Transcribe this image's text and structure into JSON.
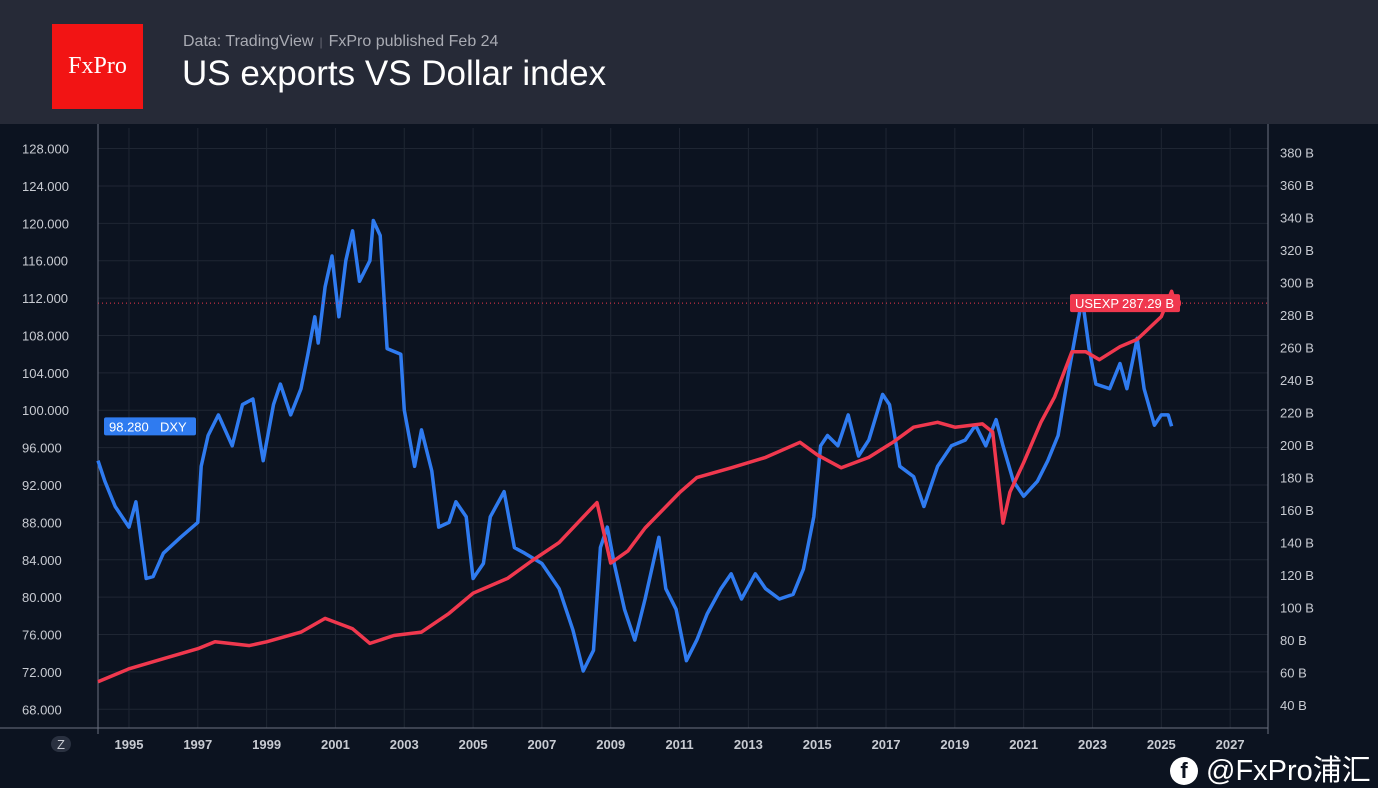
{
  "header": {
    "logo": "FxPro",
    "source": "Data: TradingView",
    "published": "FxPro published Feb 24",
    "title": "US exports VS Dollar index"
  },
  "watermark": "@FxPro浦汇",
  "colors": {
    "dxy": "#2f7bf0",
    "usexp": "#f0384e",
    "grid": "#1f2633"
  },
  "chart_data": {
    "type": "line",
    "title": "US exports VS Dollar index",
    "x_ticks": [
      "1995",
      "1997",
      "1999",
      "2001",
      "2003",
      "2005",
      "2007",
      "2009",
      "2011",
      "2013",
      "2015",
      "2017",
      "2019",
      "2021",
      "2023",
      "2025",
      "2027"
    ],
    "x_range": [
      1994.1,
      2028.1
    ],
    "left_axis": {
      "ticks": [
        "68.000",
        "72.000",
        "76.000",
        "80.000",
        "84.000",
        "88.000",
        "92.000",
        "96.000",
        "100.000",
        "104.000",
        "108.000",
        "112.000",
        "116.000",
        "120.000",
        "124.000",
        "128.000"
      ],
      "range": [
        66,
        130.2
      ]
    },
    "right_axis": {
      "ticks": [
        "40 B",
        "60 B",
        "80 B",
        "100 B",
        "120 B",
        "140 B",
        "160 B",
        "180 B",
        "200 B",
        "220 B",
        "240 B",
        "260 B",
        "280 B",
        "300 B",
        "320 B",
        "340 B",
        "360 B",
        "380 B"
      ],
      "range": [
        26,
        395
      ]
    },
    "axis_badge": "Z",
    "series": [
      {
        "name": "DXY",
        "axis": "left",
        "last_label": "98.280",
        "x": [
          1994.1,
          1994.3,
          1994.6,
          1995.0,
          1995.2,
          1995.5,
          1995.7,
          1996.0,
          1996.5,
          1997.0,
          1997.1,
          1997.3,
          1997.6,
          1998.0,
          1998.3,
          1998.6,
          1998.9,
          1999.2,
          1999.4,
          1999.7,
          2000.0,
          2000.2,
          2000.4,
          2000.5,
          2000.7,
          2000.9,
          2001.1,
          2001.3,
          2001.5,
          2001.7,
          2002.0,
          2002.1,
          2002.3,
          2002.5,
          2002.9,
          2003.0,
          2003.3,
          2003.5,
          2003.8,
          2004.0,
          2004.3,
          2004.5,
          2004.8,
          2005.0,
          2005.3,
          2005.5,
          2005.9,
          2006.2,
          2006.5,
          2007.0,
          2007.5,
          2007.9,
          2008.2,
          2008.5,
          2008.7,
          2008.9,
          2009.1,
          2009.4,
          2009.7,
          2010.0,
          2010.4,
          2010.6,
          2010.9,
          2011.2,
          2011.5,
          2011.8,
          2012.2,
          2012.5,
          2012.8,
          2013.2,
          2013.5,
          2013.9,
          2014.3,
          2014.6,
          2014.9,
          2015.1,
          2015.3,
          2015.6,
          2015.9,
          2016.2,
          2016.5,
          2016.9,
          2017.1,
          2017.4,
          2017.8,
          2018.1,
          2018.5,
          2018.9,
          2019.3,
          2019.6,
          2019.9,
          2020.2,
          2020.4,
          2020.7,
          2021.0,
          2021.4,
          2021.7,
          2022.0,
          2022.3,
          2022.7,
          2022.9,
          2023.1,
          2023.5,
          2023.8,
          2024.0,
          2024.3,
          2024.5,
          2024.8,
          2025.0,
          2025.2,
          2025.3
        ],
        "values": [
          94.6,
          92.4,
          89.7,
          87.5,
          90.2,
          82.0,
          82.2,
          84.7,
          86.4,
          88.0,
          94.0,
          97.3,
          99.5,
          96.2,
          100.6,
          101.2,
          94.6,
          100.6,
          102.8,
          99.5,
          102.3,
          106.0,
          110.0,
          107.2,
          113.2,
          116.5,
          110.0,
          116.0,
          119.2,
          113.8,
          116.0,
          120.3,
          118.7,
          106.6,
          106.0,
          100.0,
          94.0,
          97.9,
          93.5,
          87.5,
          88.0,
          90.2,
          88.6,
          82.0,
          83.6,
          88.6,
          91.3,
          85.3,
          84.7,
          83.6,
          80.9,
          76.5,
          72.1,
          74.3,
          85.3,
          87.5,
          83.6,
          78.7,
          75.4,
          79.8,
          86.4,
          80.9,
          78.7,
          73.2,
          75.4,
          78.2,
          80.9,
          82.5,
          79.8,
          82.5,
          80.9,
          79.8,
          80.3,
          83.0,
          88.6,
          96.2,
          97.3,
          96.2,
          99.5,
          95.1,
          96.8,
          101.7,
          100.6,
          94.0,
          92.9,
          89.7,
          94.0,
          96.2,
          96.8,
          98.4,
          96.2,
          99.0,
          96.2,
          92.4,
          90.8,
          92.4,
          94.6,
          97.3,
          103.9,
          112.0,
          106.6,
          102.8,
          102.3,
          105.0,
          102.3,
          107.7,
          102.3,
          98.4,
          99.5,
          99.5,
          98.28
        ]
      },
      {
        "name": "USEXP",
        "axis": "right",
        "last_label": "287.29 B",
        "x": [
          1994.1,
          1995.0,
          1996.0,
          1997.0,
          1997.5,
          1998.5,
          1999.0,
          2000.0,
          2000.7,
          2001.5,
          2002.0,
          2002.7,
          2003.5,
          2004.3,
          2005.0,
          2006.0,
          2006.7,
          2007.5,
          2008.3,
          2008.6,
          2009.0,
          2009.5,
          2010.0,
          2011.0,
          2011.5,
          2012.5,
          2013.5,
          2014.5,
          2015.0,
          2015.7,
          2016.5,
          2017.2,
          2017.8,
          2018.5,
          2019.0,
          2019.8,
          2020.1,
          2020.4,
          2020.6,
          2021.0,
          2021.5,
          2021.9,
          2022.4,
          2022.8,
          2023.2,
          2023.8,
          2024.3,
          2024.7,
          2025.0,
          2025.3,
          2025.4
        ],
        "values": [
          54.4,
          62.4,
          68.6,
          74.8,
          79.0,
          76.7,
          79.0,
          85.0,
          93.4,
          87.0,
          78.0,
          82.9,
          85.0,
          96.5,
          108.9,
          118.0,
          128.7,
          140.0,
          158.0,
          164.6,
          127.4,
          134.9,
          149.0,
          170.8,
          180.0,
          186.0,
          192.4,
          201.7,
          194.0,
          186.0,
          192.4,
          201.7,
          211.0,
          214.0,
          211.0,
          213.0,
          208.0,
          152.0,
          171.0,
          189.3,
          214.0,
          229.6,
          257.4,
          257.4,
          252.5,
          260.5,
          265.0,
          273.0,
          279.0,
          294.6,
          287.29
        ]
      }
    ]
  }
}
